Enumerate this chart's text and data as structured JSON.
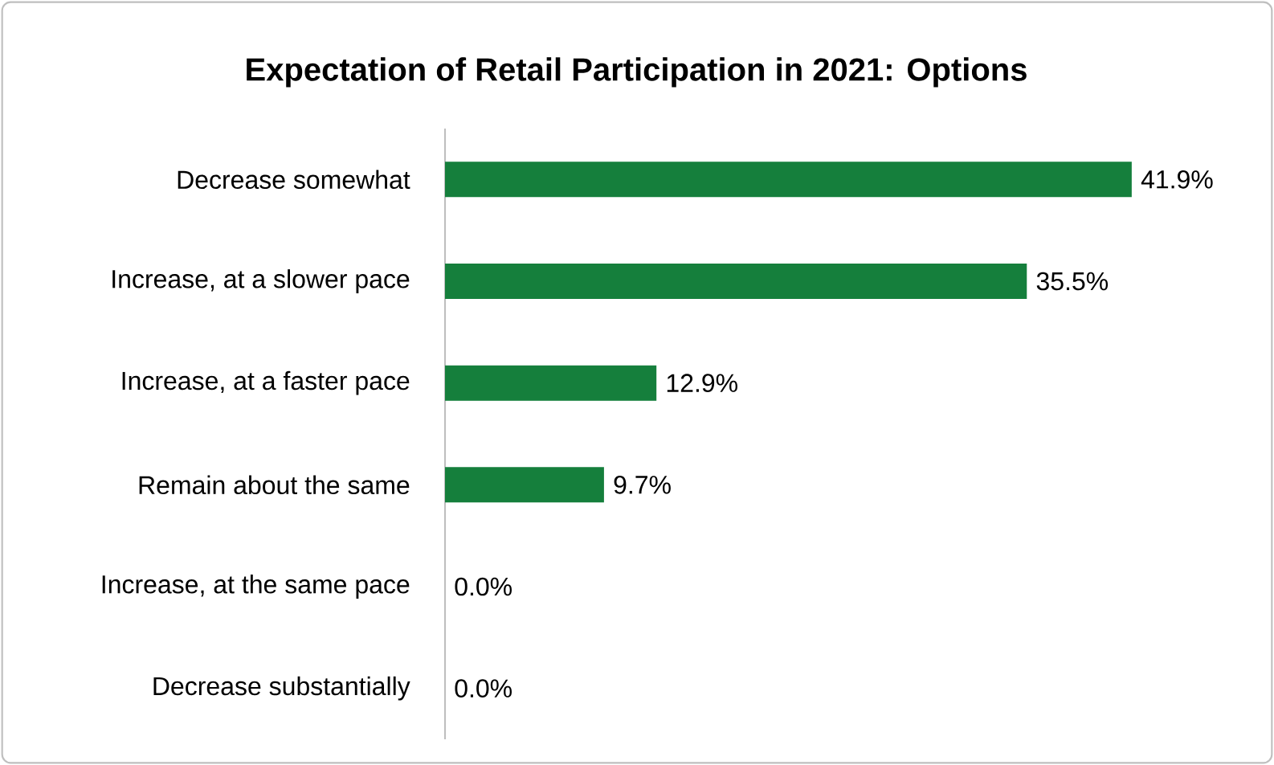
{
  "chart_data": {
    "type": "bar",
    "orientation": "horizontal",
    "title": "Expectation of Retail Participation in 2021: Options",
    "categories": [
      "Decrease somewhat",
      "Increase, at a slower pace",
      "Increase, at a faster pace",
      "Remain about the same",
      "Increase, at the same pace",
      "Decrease substantially"
    ],
    "values": [
      41.9,
      35.5,
      12.9,
      9.7,
      0.0,
      0.0
    ],
    "value_labels": [
      "41.9%",
      "35.5%",
      "12.9%",
      "9.7%",
      "0.0%",
      "0.0%"
    ],
    "color": "#157f3c"
  }
}
